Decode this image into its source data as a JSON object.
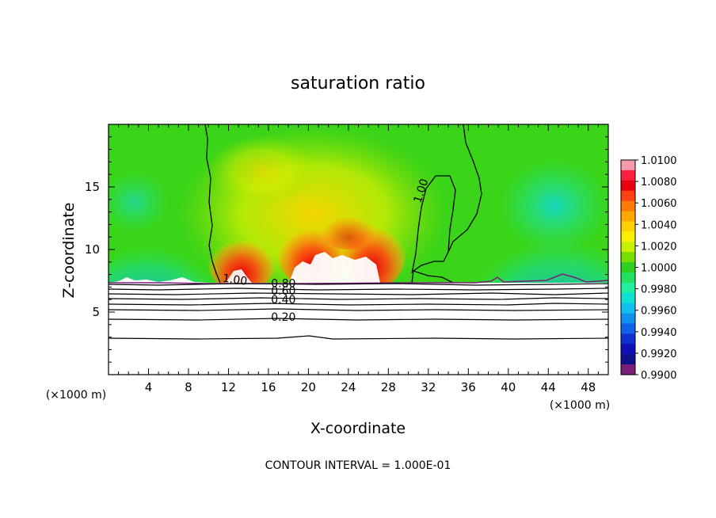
{
  "chart_data": {
    "type": "heatmap",
    "title": "saturation ratio",
    "xlabel": "X-coordinate",
    "ylabel": "Z-coordinate",
    "x_unit_left": "(×1000 m)",
    "x_unit_right": "(×1000 m)",
    "xlim": [
      0,
      50
    ],
    "ylim": [
      0,
      20
    ],
    "x_ticks": [
      4,
      8,
      12,
      16,
      20,
      24,
      28,
      32,
      36,
      40,
      44,
      48
    ],
    "y_ticks": [
      5,
      10,
      15
    ],
    "footer": "CONTOUR INTERVAL = 1.000E-01",
    "colorbar": {
      "min": 0.99,
      "max": 1.01,
      "labels": [
        "1.0100",
        "1.0080",
        "1.0060",
        "1.0040",
        "1.0020",
        "1.0000",
        "0.9980",
        "0.9960",
        "0.9940",
        "0.9920",
        "0.9900"
      ]
    },
    "contour_labels": [
      {
        "text": "1.00",
        "x": 12.6,
        "z": 7.3,
        "rotate": 8
      },
      {
        "text": "1.00",
        "x": 31.6,
        "z": 14.6,
        "rotate": -72
      },
      {
        "text": "0.80",
        "x": 17.5,
        "z": 7.0,
        "rotate": 0
      },
      {
        "text": "0.60",
        "x": 17.5,
        "z": 6.4,
        "rotate": 0
      },
      {
        "text": "0.40",
        "x": 17.5,
        "z": 5.7,
        "rotate": 0
      },
      {
        "text": "0.20",
        "x": 17.5,
        "z": 4.3,
        "rotate": 0
      }
    ]
  }
}
